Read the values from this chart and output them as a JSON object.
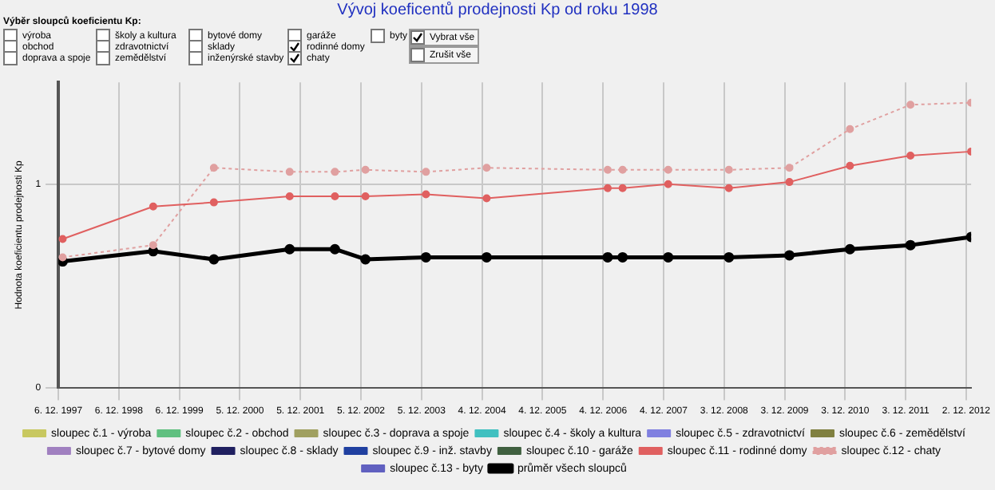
{
  "chart_data": {
    "type": "line",
    "title": "Vývoj koeficentů prodejnosti Kp od roku 1998",
    "ylabel": "Hodnota koeficientu prodejnosti Kp",
    "annotations": [
      "Výběr sloupců koeficientu Kp:",
      "výroba",
      "obchod",
      "doprava a spoje",
      "školy a kultura",
      "zdravotnictví",
      "zemědělství",
      "bytové domy",
      "sklady",
      "inženýrské stavby",
      "garáže",
      "rodinné domy",
      "chaty",
      "byty",
      "Vybrat vše",
      "Zrušit vše"
    ],
    "x": [
      "1998-01-01",
      "1999-07-01",
      "2000-07-01",
      "2001-10-01",
      "2002-07-01",
      "2003-01-01",
      "2004-01-01",
      "2005-01-01",
      "2007-01-01",
      "2007-04-01",
      "2008-01-01",
      "2009-01-01",
      "2010-01-01",
      "2011-01-01",
      "2012-01-01",
      "2013-01-01"
    ],
    "xlim": [
      "1997-12-06",
      "2013-01-01"
    ],
    "xticks": [
      {
        "value": "1997-12-06",
        "label": "6. 12. 1997"
      },
      {
        "value": "1998-12-06",
        "label": "6. 12. 1998"
      },
      {
        "value": "1999-12-06",
        "label": "6. 12. 1999"
      },
      {
        "value": "2000-12-05",
        "label": "5. 12. 2000"
      },
      {
        "value": "2001-12-05",
        "label": "5. 12. 2001"
      },
      {
        "value": "2002-12-05",
        "label": "5. 12. 2002"
      },
      {
        "value": "2003-12-05",
        "label": "5. 12. 2003"
      },
      {
        "value": "2004-12-04",
        "label": "4. 12. 2004"
      },
      {
        "value": "2005-12-04",
        "label": "4. 12. 2005"
      },
      {
        "value": "2006-12-04",
        "label": "4. 12. 2006"
      },
      {
        "value": "2007-12-04",
        "label": "4. 12. 2007"
      },
      {
        "value": "2008-12-03",
        "label": "3. 12. 2008"
      },
      {
        "value": "2009-12-03",
        "label": "3. 12. 2009"
      },
      {
        "value": "2010-12-03",
        "label": "3. 12. 2010"
      },
      {
        "value": "2011-12-03",
        "label": "3. 12. 2011"
      },
      {
        "value": "2012-12-02",
        "label": "2. 12. 2012"
      }
    ],
    "ylim": [
      0,
      1.5
    ],
    "yticks": [
      0,
      1
    ],
    "grid": true,
    "legend": "bottom",
    "marker": "circle",
    "line_style": "solid",
    "series": [
      {
        "name": "sloupec č.1 - výroba",
        "color": "#c8c860",
        "values": [
          null,
          null,
          null,
          null,
          null,
          null,
          null,
          null,
          null,
          null,
          null,
          null,
          null,
          null,
          null,
          null
        ]
      },
      {
        "name": "sloupec č.2 - obchod",
        "color": "#60c080",
        "values": [
          null,
          null,
          null,
          null,
          null,
          null,
          null,
          null,
          null,
          null,
          null,
          null,
          null,
          null,
          null,
          null
        ]
      },
      {
        "name": "sloupec č.3 - doprava a spoje",
        "color": "#a0a060",
        "values": [
          null,
          null,
          null,
          null,
          null,
          null,
          null,
          null,
          null,
          null,
          null,
          null,
          null,
          null,
          null,
          null
        ]
      },
      {
        "name": "sloupec č.4 - školy a kultura",
        "color": "#40c0c0",
        "values": [
          null,
          null,
          null,
          null,
          null,
          null,
          null,
          null,
          null,
          null,
          null,
          null,
          null,
          null,
          null,
          null
        ]
      },
      {
        "name": "sloupec č.5 - zdravotnictví",
        "color": "#8080e0",
        "values": [
          null,
          null,
          null,
          null,
          null,
          null,
          null,
          null,
          null,
          null,
          null,
          null,
          null,
          null,
          null,
          null
        ]
      },
      {
        "name": "sloupec č.6 - zemědělství",
        "color": "#808040",
        "values": [
          null,
          null,
          null,
          null,
          null,
          null,
          null,
          null,
          null,
          null,
          null,
          null,
          null,
          null,
          null,
          null
        ]
      },
      {
        "name": "sloupec č.7 - bytové domy",
        "color": "#a080c0",
        "values": [
          null,
          null,
          null,
          null,
          null,
          null,
          null,
          null,
          null,
          null,
          null,
          null,
          null,
          null,
          null,
          null
        ]
      },
      {
        "name": "sloupec č.8 - sklady",
        "color": "#202060",
        "values": [
          null,
          null,
          null,
          null,
          null,
          null,
          null,
          null,
          null,
          null,
          null,
          null,
          null,
          null,
          null,
          null
        ]
      },
      {
        "name": "sloupec č.9 - inž. stavby",
        "color": "#2040a0",
        "values": [
          null,
          null,
          null,
          null,
          null,
          null,
          null,
          null,
          null,
          null,
          null,
          null,
          null,
          null,
          null,
          null
        ]
      },
      {
        "name": "sloupec č.10 - garáže",
        "color": "#406040",
        "values": [
          null,
          null,
          null,
          null,
          null,
          null,
          null,
          null,
          null,
          null,
          null,
          null,
          null,
          null,
          null,
          null
        ]
      },
      {
        "name": "sloupec č.11 - rodinné domy",
        "color": "#e06060",
        "values": [
          0.73,
          0.89,
          0.91,
          0.94,
          0.94,
          0.94,
          0.95,
          0.93,
          0.98,
          0.98,
          1.0,
          0.98,
          1.01,
          1.09,
          1.14,
          1.16
        ]
      },
      {
        "name": "sloupec č.12 - chaty",
        "color": "#e0a0a0",
        "line_style": "dotted",
        "values": [
          0.64,
          0.7,
          1.08,
          1.06,
          1.06,
          1.07,
          1.06,
          1.08,
          1.07,
          1.07,
          1.07,
          1.07,
          1.08,
          1.27,
          1.39,
          1.4
        ]
      },
      {
        "name": "sloupec č.13 - byty",
        "color": "#6060c0",
        "values": [
          null,
          null,
          null,
          null,
          null,
          null,
          null,
          null,
          null,
          null,
          null,
          null,
          null,
          null,
          null,
          null
        ]
      },
      {
        "name": "průměr všech sloupců",
        "color": "#000000",
        "values": [
          0.62,
          0.67,
          0.63,
          0.68,
          0.68,
          0.63,
          0.64,
          0.64,
          0.64,
          0.64,
          0.64,
          0.64,
          0.65,
          0.68,
          0.7,
          0.74
        ]
      }
    ]
  }
}
